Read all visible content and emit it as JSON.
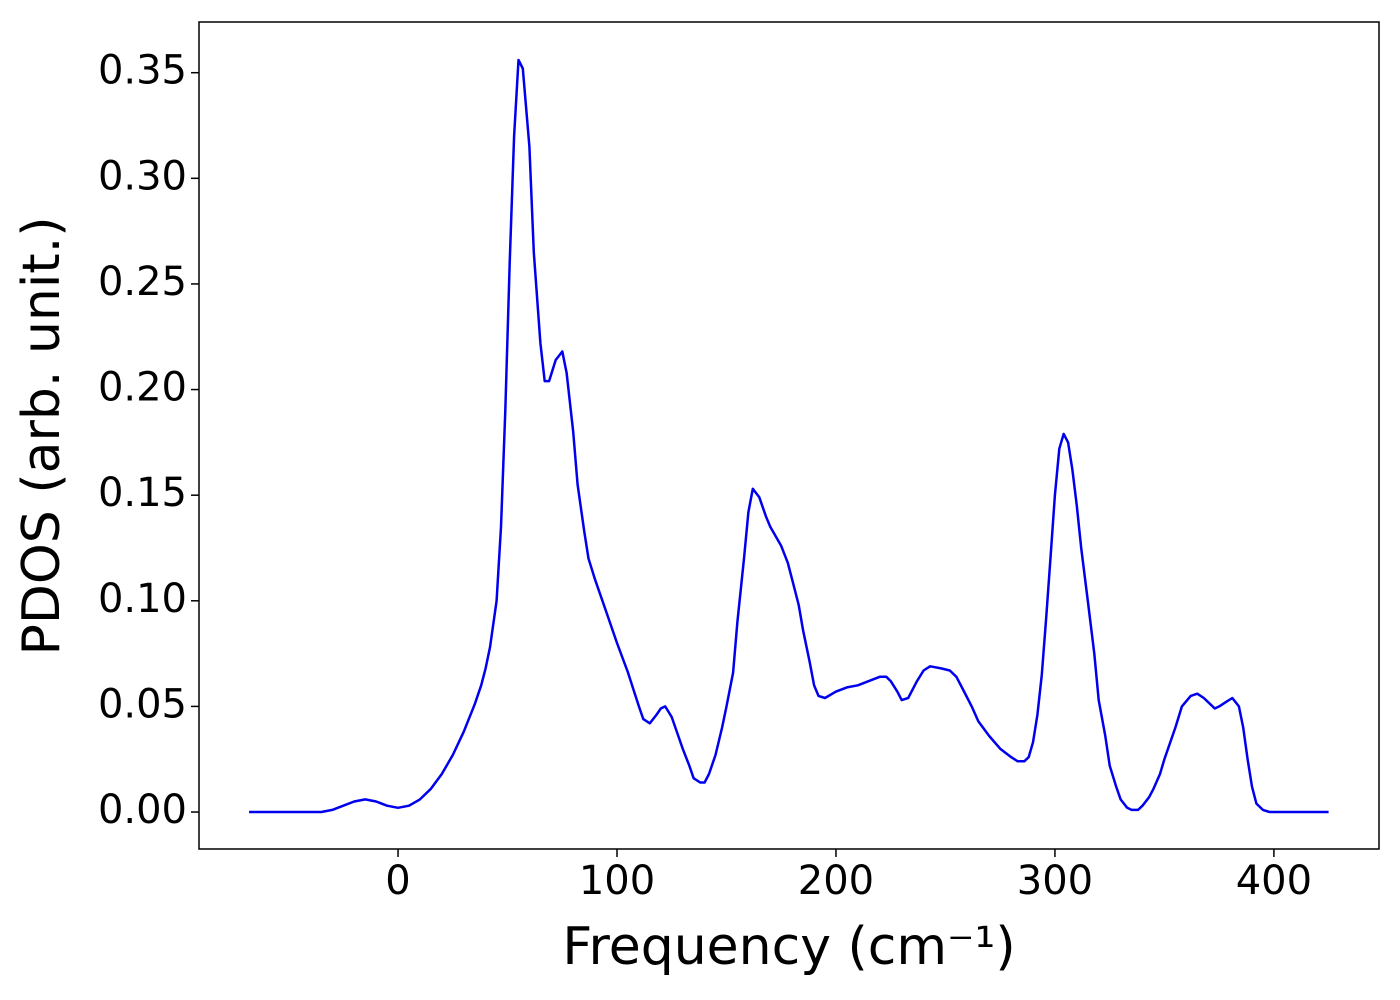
{
  "chart_data": {
    "type": "line",
    "xlabel": "Frequency (cm⁻¹)",
    "ylabel": "PDOS (arb. unit.)",
    "color": "#0000ee",
    "x": [
      -68,
      -35,
      -30,
      -25,
      -20,
      -15,
      -10,
      -5,
      0,
      5,
      10,
      15,
      20,
      25,
      30,
      35,
      38,
      40,
      42,
      45,
      47,
      49,
      51,
      53,
      55,
      57,
      60,
      62,
      65,
      67,
      69,
      72,
      75,
      77,
      80,
      82,
      85,
      87,
      90,
      95,
      100,
      105,
      110,
      112,
      115,
      118,
      120,
      122,
      125,
      128,
      130,
      133,
      135,
      138,
      140,
      142,
      145,
      148,
      150,
      153,
      155,
      158,
      160,
      162,
      165,
      168,
      170,
      175,
      178,
      180,
      183,
      185,
      188,
      190,
      192,
      195,
      200,
      205,
      210,
      215,
      220,
      223,
      225,
      228,
      230,
      233,
      237,
      240,
      243,
      248,
      252,
      255,
      258,
      262,
      265,
      270,
      275,
      280,
      283,
      286,
      288,
      290,
      292,
      294,
      296,
      298,
      300,
      302,
      304,
      306,
      308,
      310,
      312,
      315,
      318,
      320,
      323,
      325,
      328,
      330,
      333,
      335,
      338,
      340,
      343,
      345,
      348,
      350,
      355,
      358,
      362,
      365,
      368,
      370,
      373,
      375,
      378,
      381,
      384,
      386,
      388,
      390,
      392,
      395,
      398,
      425
    ],
    "values": [
      0,
      0,
      0.001,
      0.003,
      0.005,
      0.006,
      0.005,
      0.003,
      0.002,
      0.003,
      0.006,
      0.011,
      0.018,
      0.027,
      0.038,
      0.051,
      0.06,
      0.068,
      0.078,
      0.1,
      0.135,
      0.19,
      0.26,
      0.32,
      0.356,
      0.352,
      0.315,
      0.265,
      0.222,
      0.204,
      0.204,
      0.214,
      0.218,
      0.208,
      0.18,
      0.155,
      0.133,
      0.12,
      0.11,
      0.095,
      0.08,
      0.066,
      0.05,
      0.044,
      0.042,
      0.046,
      0.049,
      0.05,
      0.045,
      0.036,
      0.03,
      0.022,
      0.016,
      0.014,
      0.014,
      0.018,
      0.027,
      0.04,
      0.05,
      0.066,
      0.09,
      0.12,
      0.142,
      0.153,
      0.149,
      0.14,
      0.135,
      0.126,
      0.118,
      0.11,
      0.098,
      0.086,
      0.071,
      0.06,
      0.055,
      0.054,
      0.057,
      0.059,
      0.06,
      0.062,
      0.064,
      0.064,
      0.062,
      0.057,
      0.053,
      0.054,
      0.062,
      0.067,
      0.069,
      0.068,
      0.067,
      0.064,
      0.058,
      0.05,
      0.043,
      0.036,
      0.03,
      0.026,
      0.024,
      0.024,
      0.026,
      0.033,
      0.046,
      0.065,
      0.092,
      0.121,
      0.15,
      0.172,
      0.179,
      0.175,
      0.162,
      0.145,
      0.125,
      0.1,
      0.075,
      0.053,
      0.036,
      0.022,
      0.012,
      0.006,
      0.002,
      0.001,
      0.001,
      0.003,
      0.007,
      0.011,
      0.018,
      0.025,
      0.04,
      0.05,
      0.055,
      0.056,
      0.054,
      0.052,
      0.049,
      0.05,
      0.052,
      0.054,
      0.05,
      0.04,
      0.025,
      0.012,
      0.004,
      0.001,
      0,
      0
    ],
    "xlim": [
      -90.9,
      448
    ],
    "ylim": [
      -0.0175,
      0.374
    ],
    "xticks": [
      0,
      100,
      200,
      300,
      400
    ],
    "yticks": [
      {
        "value": 0,
        "label": "0.00"
      },
      {
        "value": 0.05,
        "label": "0.05"
      },
      {
        "value": 0.1,
        "label": "0.10"
      },
      {
        "value": 0.15,
        "label": "0.15"
      },
      {
        "value": 0.2,
        "label": "0.20"
      },
      {
        "value": 0.25,
        "label": "0.25"
      },
      {
        "value": 0.3,
        "label": "0.30"
      },
      {
        "value": 0.35,
        "label": "0.35"
      }
    ]
  }
}
